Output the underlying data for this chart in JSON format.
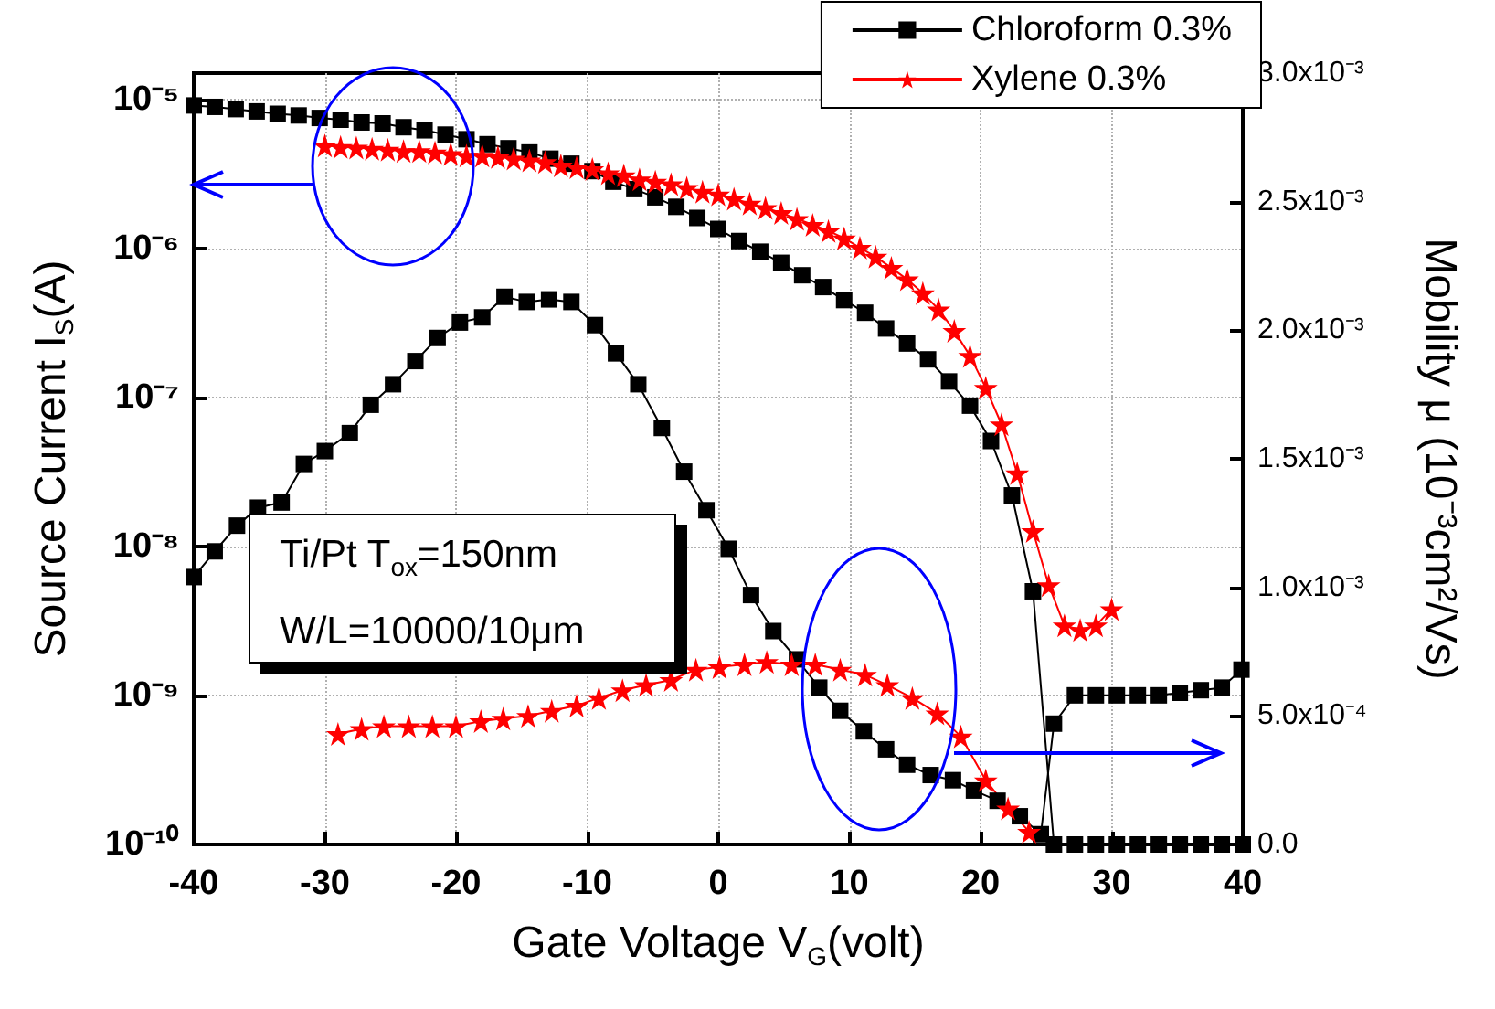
{
  "chart_data": {
    "type": "line",
    "xlabel": "Gate Voltage V$_{G}$(volt)",
    "ylabel": "Source Current I$_{S}$(A)",
    "y2label": "Mobility μ (10⁻³cm²/Vs)",
    "annotations": [
      "Ti/Pt T$_{ox}$=150nm",
      "W/L=10000/10μm"
    ],
    "xlim": [
      -40,
      40
    ],
    "xticks": [
      -40,
      -30,
      -20,
      -10,
      0,
      10,
      20,
      30,
      40
    ],
    "ylim": [
      1e-10,
      1.5e-05
    ],
    "yticks": [
      {
        "value": 1e-10,
        "label": "10⁻¹⁰"
      },
      {
        "value": 1e-09,
        "label": "10⁻⁹"
      },
      {
        "value": 1e-08,
        "label": "10⁻⁸"
      },
      {
        "value": 1e-07,
        "label": "10⁻⁷"
      },
      {
        "value": 1e-06,
        "label": "10⁻⁶"
      },
      {
        "value": 1e-05,
        "label": "10⁻⁵"
      }
    ],
    "y2lim": [
      0,
      0.003
    ],
    "y2ticks": [
      {
        "value": 0,
        "label": "0.0"
      },
      {
        "value": 0.0005,
        "label": "5.0x10⁻⁴"
      },
      {
        "value": 0.001,
        "label": "1.0x10⁻³"
      },
      {
        "value": 0.0015,
        "label": "1.5x10⁻³"
      },
      {
        "value": 0.002,
        "label": "2.0x10⁻³"
      },
      {
        "value": 0.0025,
        "label": "2.5x10⁻³"
      },
      {
        "value": 0.003,
        "label": "3.0x10⁻³"
      }
    ],
    "log": "y",
    "grid": true,
    "legend": "top right",
    "line_style": "solid",
    "series": [
      {
        "name": "Chloroform 0.3%",
        "color": "#000000",
        "marker": "square",
        "x": [
          -40,
          -38.4,
          -36.8,
          -35.2,
          -33.6,
          -32,
          -30.4,
          -28.8,
          -27.2,
          -25.6,
          -24,
          -22.4,
          -20.8,
          -19.2,
          -17.6,
          -16,
          -14.4,
          -12.8,
          -11.2,
          -9.6,
          -8,
          -6.4,
          -4.8,
          -3.2,
          -1.6,
          0,
          1.6,
          3.2,
          4.8,
          6.4,
          8,
          9.6,
          11.2,
          12.8,
          14.4,
          16,
          17.6,
          19.2,
          20.8,
          22.4,
          24,
          25.6,
          27.2,
          28.8,
          30.4,
          32,
          33.6,
          35.2,
          36.8,
          38.4,
          40
        ],
        "values": [
          9.1e-06,
          8.9e-06,
          8.6e-06,
          8.3e-06,
          8e-06,
          7.8e-06,
          7.5e-06,
          7.3e-06,
          7e-06,
          6.9e-06,
          6.5e-06,
          6.2e-06,
          5.8e-06,
          5.4e-06,
          5e-06,
          4.7e-06,
          4.4e-06,
          4e-06,
          3.7e-06,
          3.3e-06,
          2.8e-06,
          2.5e-06,
          2.2e-06,
          1.9e-06,
          1.6e-06,
          1.35e-06,
          1.12e-06,
          9.5e-07,
          8e-07,
          6.6e-07,
          5.5e-07,
          4.5e-07,
          3.7e-07,
          2.9e-07,
          2.3e-07,
          1.8e-07,
          1.28e-07,
          8.8e-08,
          5.1e-08,
          2.2e-08,
          5e-09,
          1e-10,
          1e-10,
          1e-10,
          1e-10,
          1e-10,
          1e-10,
          1e-10,
          1e-10,
          1e-10,
          1e-10
        ]
      },
      {
        "color": "#000000",
        "marker": "square",
        "axis": "y2",
        "x": [
          -40,
          -38.4,
          -36.7,
          -35.1,
          -33.3,
          -31.6,
          -30.0,
          -28.1,
          -26.5,
          -24.8,
          -23.1,
          -21.4,
          -19.7,
          -18.0,
          -16.3,
          -14.6,
          -12.9,
          -11.2,
          -9.4,
          -7.8,
          -6.1,
          -4.3,
          -2.6,
          -0.9,
          0.8,
          2.5,
          4.2,
          6.0,
          7.7,
          9.3,
          11.1,
          12.8,
          14.4,
          16.2,
          17.9,
          19.5,
          21.3,
          23.0,
          24.6,
          25.6,
          27.2,
          28.8,
          30.4,
          32.0,
          33.6,
          35.2,
          36.8,
          38.4,
          39.9
        ],
        "values": [
          0.00104,
          0.00114,
          0.00124,
          0.00131,
          0.00133,
          0.00148,
          0.00153,
          0.0016,
          0.00171,
          0.00179,
          0.00188,
          0.00197,
          0.00203,
          0.00205,
          0.00213,
          0.00211,
          0.00212,
          0.00211,
          0.00202,
          0.00191,
          0.00179,
          0.00162,
          0.00145,
          0.0013,
          0.00115,
          0.00097,
          0.00083,
          0.00072,
          0.00061,
          0.00052,
          0.00044,
          0.00037,
          0.00031,
          0.00027,
          0.00025,
          0.00021,
          0.00017,
          0.00011,
          4e-05,
          0.00047,
          0.00058,
          0.00058,
          0.00058,
          0.00058,
          0.00058,
          0.00059,
          0.0006,
          0.00061,
          0.00068
        ]
      },
      {
        "name": "Xylene 0.3%",
        "color": "#ff0000",
        "marker": "star",
        "x": [
          -30,
          -28.8,
          -27.6,
          -26.4,
          -25.2,
          -24,
          -22.8,
          -21.6,
          -20.4,
          -19.2,
          -18,
          -16.8,
          -15.6,
          -14.4,
          -13.2,
          -12,
          -10.8,
          -9.6,
          -8.4,
          -7.2,
          -6,
          -4.8,
          -3.6,
          -2.4,
          -1.2,
          0,
          1.2,
          2.4,
          3.6,
          4.8,
          6,
          7.2,
          8.4,
          9.6,
          10.8,
          12,
          13.2,
          14.4,
          15.6,
          16.8,
          18,
          19.2,
          20.4,
          21.6,
          22.8,
          24,
          25.2,
          26.4,
          27.6,
          28.8,
          30
        ],
        "values": [
          4.9e-06,
          4.8e-06,
          4.75e-06,
          4.67e-06,
          4.6e-06,
          4.5e-06,
          4.5e-06,
          4.4e-06,
          4.3e-06,
          4.2e-06,
          4.2e-06,
          4.1e-06,
          4e-06,
          3.9e-06,
          3.8e-06,
          3.6e-06,
          3.5e-06,
          3.4e-06,
          3.2e-06,
          3.1e-06,
          2.9e-06,
          2.8e-06,
          2.7e-06,
          2.55e-06,
          2.4e-06,
          2.3e-06,
          2.15e-06,
          2e-06,
          1.87e-06,
          1.73e-06,
          1.58e-06,
          1.44e-06,
          1.31e-06,
          1.17e-06,
          1.01e-06,
          8.8e-07,
          7.4e-07,
          6.2e-07,
          5e-07,
          3.9e-07,
          2.8e-07,
          1.9e-07,
          1.16e-07,
          6.6e-08,
          3.1e-08,
          1.27e-08,
          5.5e-09,
          2.95e-09,
          2.75e-09,
          2.95e-09,
          3.8e-09
        ]
      },
      {
        "color": "#ff0000",
        "marker": "star",
        "axis": "y2",
        "x": [
          -29.0,
          -27.2,
          -25.5,
          -23.6,
          -21.8,
          -20.0,
          -18.1,
          -16.4,
          -14.5,
          -12.7,
          -10.8,
          -9.1,
          -7.3,
          -5.5,
          -3.6,
          -1.7,
          0.1,
          2.0,
          3.7,
          5.6,
          7.4,
          9.3,
          11.2,
          12.9,
          14.8,
          16.7,
          18.5,
          20.4,
          22.1,
          23.7
        ],
        "values": [
          0.00043,
          0.00045,
          0.00046,
          0.00046,
          0.00046,
          0.00046,
          0.00048,
          0.00049,
          0.0005,
          0.00052,
          0.00054,
          0.00057,
          0.0006,
          0.00062,
          0.00064,
          0.00068,
          0.00069,
          0.0007,
          0.00071,
          0.0007,
          0.0007,
          0.00068,
          0.00066,
          0.00062,
          0.00057,
          0.00051,
          0.00042,
          0.00025,
          0.00014,
          5e-05
        ]
      }
    ]
  }
}
